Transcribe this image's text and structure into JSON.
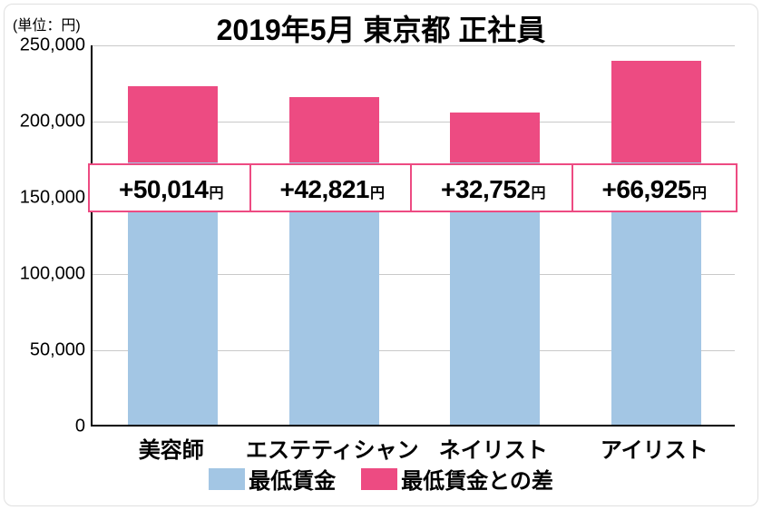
{
  "unit_label": "(単位：円)",
  "title": "2019年5月 東京都 正社員",
  "chart": {
    "type": "stacked-bar",
    "ylim": [
      0,
      250000
    ],
    "ytick_step": 50000,
    "ytick_labels": [
      "0",
      "50,000",
      "100,000",
      "150,000",
      "200,000",
      "250,000"
    ],
    "grid_color": "#c9c9c9",
    "axis_color": "#000000",
    "background_color": "#ffffff",
    "categories": [
      "美容師",
      "エステティシャン",
      "ネイリスト",
      "アイリスト"
    ],
    "series": [
      {
        "name": "最低賃金",
        "color": "#a3c6e4",
        "values": [
          172000,
          172000,
          172000,
          172000
        ]
      },
      {
        "name": "最低賃金との差",
        "color": "#ed4b82",
        "values": [
          50014,
          42821,
          32752,
          66925
        ]
      }
    ],
    "diff_badges": [
      {
        "text": "+50,014",
        "suffix": "円"
      },
      {
        "text": "+42,821",
        "suffix": "円"
      },
      {
        "text": "+32,752",
        "suffix": "円"
      },
      {
        "text": "+66,925",
        "suffix": "円"
      }
    ],
    "badge_border_color": "#ed4b82",
    "bar_width_ratio": 0.56,
    "title_fontsize": 32,
    "xcat_fontsize": 24,
    "ytick_fontsize": 20,
    "legend_fontsize": 24,
    "badge_fontsize": 28
  }
}
